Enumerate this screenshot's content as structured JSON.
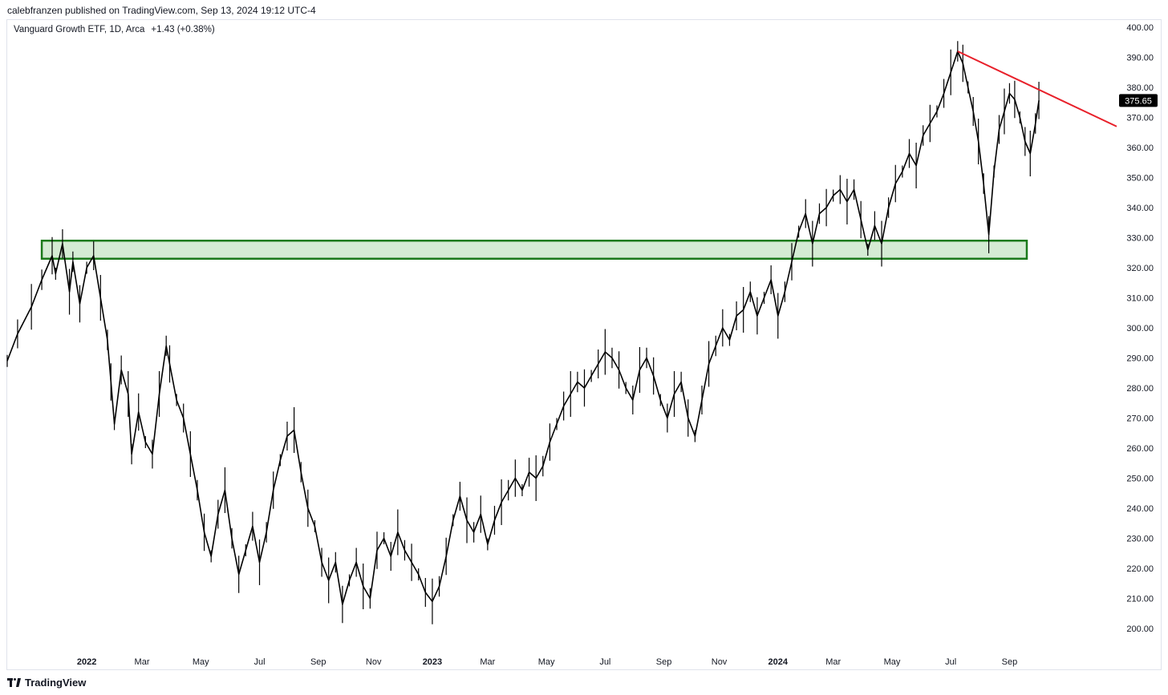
{
  "header": {
    "published_line": "calebfranzen published on TradingView.com, Sep 13, 2024 19:12 UTC-4"
  },
  "legend": {
    "symbol_line": "Vanguard Growth ETF, 1D, Arca",
    "change": "+1.43 (+0.38%)"
  },
  "footer": {
    "brand": "TradingView"
  },
  "chart_data": {
    "type": "line",
    "title": "",
    "xlabel": "",
    "ylabel": "",
    "ylim": [
      190,
      400
    ],
    "grid": false,
    "y_ticks": [
      "400.00",
      "390.00",
      "380.00",
      "370.00",
      "360.00",
      "350.00",
      "340.00",
      "330.00",
      "320.00",
      "310.00",
      "300.00",
      "290.00",
      "280.00",
      "270.00",
      "260.00",
      "250.00",
      "240.00",
      "230.00",
      "220.00",
      "210.00",
      "200.00"
    ],
    "x_ticks": [
      {
        "label": "2022",
        "t": 2022.0,
        "year": true
      },
      {
        "label": "Mar",
        "t": 2022.16
      },
      {
        "label": "May",
        "t": 2022.33
      },
      {
        "label": "Jul",
        "t": 2022.5
      },
      {
        "label": "Sep",
        "t": 2022.67
      },
      {
        "label": "Nov",
        "t": 2022.83
      },
      {
        "label": "2023",
        "t": 2023.0,
        "year": true
      },
      {
        "label": "Mar",
        "t": 2023.16
      },
      {
        "label": "May",
        "t": 2023.33
      },
      {
        "label": "Jul",
        "t": 2023.5
      },
      {
        "label": "Sep",
        "t": 2023.67
      },
      {
        "label": "Nov",
        "t": 2023.83
      },
      {
        "label": "2024",
        "t": 2024.0,
        "year": true
      },
      {
        "label": "Mar",
        "t": 2024.16
      },
      {
        "label": "May",
        "t": 2024.33
      },
      {
        "label": "Jul",
        "t": 2024.5
      },
      {
        "label": "Sep",
        "t": 2024.67
      }
    ],
    "xlim": [
      2021.77,
      2024.98
    ],
    "series": [
      {
        "color": "#000000",
        "points": [
          [
            2021.77,
            289
          ],
          [
            2021.8,
            298
          ],
          [
            2021.84,
            307
          ],
          [
            2021.87,
            316
          ],
          [
            2021.9,
            324
          ],
          [
            2021.91,
            318
          ],
          [
            2021.93,
            328
          ],
          [
            2021.95,
            312
          ],
          [
            2021.96,
            322
          ],
          [
            2021.98,
            308
          ],
          [
            2022.0,
            320
          ],
          [
            2022.02,
            324
          ],
          [
            2022.04,
            310
          ],
          [
            2022.06,
            296
          ],
          [
            2022.07,
            282
          ],
          [
            2022.08,
            268
          ],
          [
            2022.1,
            286
          ],
          [
            2022.12,
            278
          ],
          [
            2022.13,
            258
          ],
          [
            2022.15,
            272
          ],
          [
            2022.17,
            262
          ],
          [
            2022.19,
            258
          ],
          [
            2022.21,
            278
          ],
          [
            2022.23,
            294
          ],
          [
            2022.24,
            288
          ],
          [
            2022.26,
            276
          ],
          [
            2022.28,
            270
          ],
          [
            2022.3,
            258
          ],
          [
            2022.32,
            246
          ],
          [
            2022.34,
            232
          ],
          [
            2022.36,
            224
          ],
          [
            2022.38,
            238
          ],
          [
            2022.4,
            246
          ],
          [
            2022.42,
            230
          ],
          [
            2022.44,
            218
          ],
          [
            2022.46,
            226
          ],
          [
            2022.48,
            234
          ],
          [
            2022.5,
            222
          ],
          [
            2022.52,
            232
          ],
          [
            2022.54,
            246
          ],
          [
            2022.56,
            256
          ],
          [
            2022.58,
            264
          ],
          [
            2022.6,
            266
          ],
          [
            2022.62,
            252
          ],
          [
            2022.64,
            240
          ],
          [
            2022.66,
            234
          ],
          [
            2022.68,
            222
          ],
          [
            2022.7,
            216
          ],
          [
            2022.72,
            222
          ],
          [
            2022.74,
            208
          ],
          [
            2022.76,
            216
          ],
          [
            2022.78,
            222
          ],
          [
            2022.8,
            214
          ],
          [
            2022.82,
            210
          ],
          [
            2022.84,
            226
          ],
          [
            2022.86,
            230
          ],
          [
            2022.88,
            224
          ],
          [
            2022.9,
            232
          ],
          [
            2022.92,
            226
          ],
          [
            2022.94,
            222
          ],
          [
            2022.96,
            218
          ],
          [
            2022.98,
            212
          ],
          [
            2023.0,
            209
          ],
          [
            2023.02,
            214
          ],
          [
            2023.04,
            224
          ],
          [
            2023.06,
            236
          ],
          [
            2023.08,
            244
          ],
          [
            2023.1,
            236
          ],
          [
            2023.12,
            232
          ],
          [
            2023.14,
            238
          ],
          [
            2023.16,
            228
          ],
          [
            2023.18,
            236
          ],
          [
            2023.2,
            242
          ],
          [
            2023.22,
            246
          ],
          [
            2023.24,
            250
          ],
          [
            2023.26,
            246
          ],
          [
            2023.28,
            252
          ],
          [
            2023.3,
            250
          ],
          [
            2023.32,
            254
          ],
          [
            2023.34,
            262
          ],
          [
            2023.36,
            268
          ],
          [
            2023.38,
            274
          ],
          [
            2023.4,
            278
          ],
          [
            2023.42,
            282
          ],
          [
            2023.44,
            280
          ],
          [
            2023.46,
            284
          ],
          [
            2023.48,
            288
          ],
          [
            2023.5,
            292
          ],
          [
            2023.52,
            290
          ],
          [
            2023.54,
            286
          ],
          [
            2023.56,
            280
          ],
          [
            2023.58,
            276
          ],
          [
            2023.6,
            286
          ],
          [
            2023.62,
            290
          ],
          [
            2023.64,
            284
          ],
          [
            2023.66,
            276
          ],
          [
            2023.68,
            270
          ],
          [
            2023.7,
            278
          ],
          [
            2023.72,
            282
          ],
          [
            2023.74,
            270
          ],
          [
            2023.76,
            264
          ],
          [
            2023.78,
            276
          ],
          [
            2023.8,
            288
          ],
          [
            2023.82,
            294
          ],
          [
            2023.84,
            300
          ],
          [
            2023.86,
            296
          ],
          [
            2023.88,
            304
          ],
          [
            2023.9,
            306
          ],
          [
            2023.92,
            312
          ],
          [
            2023.94,
            304
          ],
          [
            2023.96,
            310
          ],
          [
            2023.98,
            316
          ],
          [
            2024.0,
            304
          ],
          [
            2024.02,
            312
          ],
          [
            2024.04,
            322
          ],
          [
            2024.06,
            332
          ],
          [
            2024.08,
            338
          ],
          [
            2024.1,
            328
          ],
          [
            2024.12,
            338
          ],
          [
            2024.14,
            340
          ],
          [
            2024.16,
            344
          ],
          [
            2024.18,
            346
          ],
          [
            2024.2,
            342
          ],
          [
            2024.22,
            346
          ],
          [
            2024.24,
            336
          ],
          [
            2024.26,
            326
          ],
          [
            2024.28,
            334
          ],
          [
            2024.3,
            328
          ],
          [
            2024.32,
            340
          ],
          [
            2024.34,
            348
          ],
          [
            2024.36,
            352
          ],
          [
            2024.38,
            358
          ],
          [
            2024.4,
            354
          ],
          [
            2024.42,
            364
          ],
          [
            2024.44,
            368
          ],
          [
            2024.46,
            372
          ],
          [
            2024.48,
            378
          ],
          [
            2024.5,
            385
          ],
          [
            2024.52,
            392
          ],
          [
            2024.535,
            388
          ],
          [
            2024.55,
            380
          ],
          [
            2024.565,
            372
          ],
          [
            2024.58,
            362
          ],
          [
            2024.595,
            348
          ],
          [
            2024.61,
            331
          ],
          [
            2024.625,
            352
          ],
          [
            2024.64,
            366
          ],
          [
            2024.655,
            372
          ],
          [
            2024.67,
            378
          ],
          [
            2024.685,
            376
          ],
          [
            2024.7,
            370
          ],
          [
            2024.715,
            362
          ],
          [
            2024.73,
            358
          ],
          [
            2024.745,
            368
          ],
          [
            2024.755,
            375.65
          ]
        ]
      }
    ],
    "support_zone": {
      "x_start": 2021.87,
      "x_end": 2024.72,
      "y_low": 323,
      "y_high": 329,
      "fill": "#d4ebd3",
      "stroke": "#1b7a1b"
    },
    "trendline": {
      "x1": 2024.52,
      "y1": 392,
      "x2": 2024.98,
      "y2": 367,
      "color": "#e8202a"
    },
    "last_price": {
      "value": 375.65,
      "label": "375.65",
      "background": "#000000",
      "text_color": "#ffffff"
    }
  }
}
